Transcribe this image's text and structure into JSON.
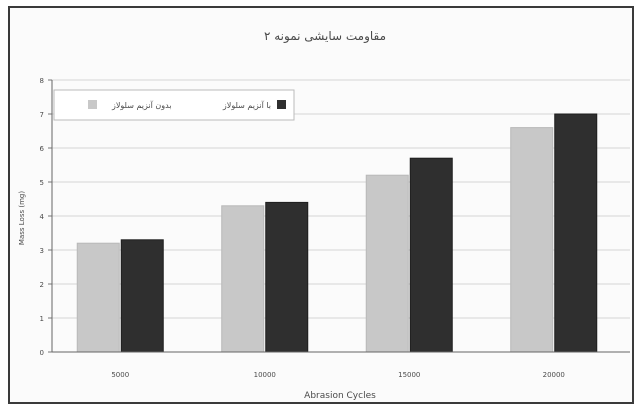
{
  "chart_data": {
    "type": "bar",
    "title": "مقاومت سایشی نمونه ۲",
    "xlabel": "Abrasion Cycles",
    "ylabel": "Mass Loss (mg)",
    "categories": [
      "5000",
      "10000",
      "15000",
      "20000"
    ],
    "ylim": [
      0,
      8
    ],
    "yticks": [
      "0",
      "1",
      "2",
      "3",
      "4",
      "5",
      "6",
      "7",
      "8"
    ],
    "grid": true,
    "legend_position": "top-left",
    "series": [
      {
        "name": "بدون آنزیم سلولاز",
        "values": [
          3.2,
          4.3,
          5.2,
          6.6
        ],
        "color": "#c8c8c8"
      },
      {
        "name": "با آنزیم سلولاز",
        "values": [
          3.3,
          4.4,
          5.7,
          7.0
        ],
        "color": "#2f2f2f"
      }
    ]
  }
}
